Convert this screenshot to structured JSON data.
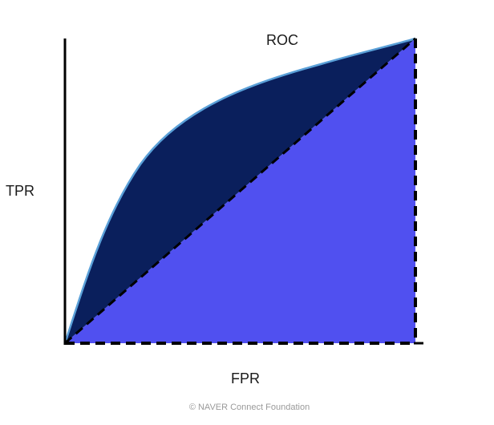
{
  "figure": {
    "title": "ROC",
    "x_axis_label": "FPR",
    "y_axis_label": "TPR",
    "credit": "© NAVER Connect Foundation"
  },
  "colors": {
    "area_above_diagonal": "#0a1f5c",
    "area_below_diagonal": "#5050f0",
    "curve_stroke": "#5aa0d8",
    "axis": "#000000",
    "diagonal_dash": "#000000"
  }
}
